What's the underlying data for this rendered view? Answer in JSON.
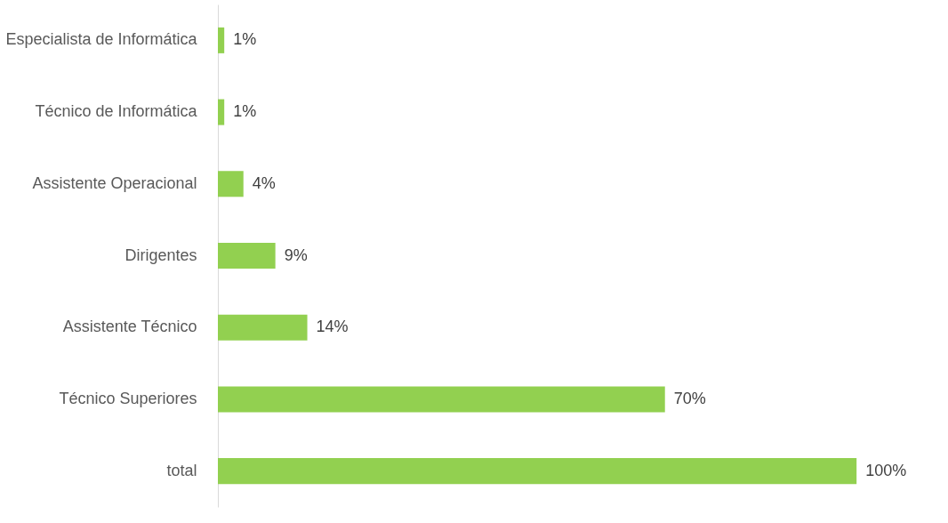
{
  "chart_data": {
    "type": "bar",
    "orientation": "horizontal",
    "categories": [
      "Especialista de Informática",
      "Técnico de Informática",
      "Assistente Operacional",
      "Dirigentes",
      "Assistente Técnico",
      "Técnico Superiores",
      "total"
    ],
    "values": [
      1,
      1,
      4,
      9,
      14,
      70,
      100
    ],
    "value_labels": [
      "1%",
      "1%",
      "4%",
      "9%",
      "14%",
      "70%",
      "100%"
    ],
    "color": "#92d050",
    "grid": false
  }
}
